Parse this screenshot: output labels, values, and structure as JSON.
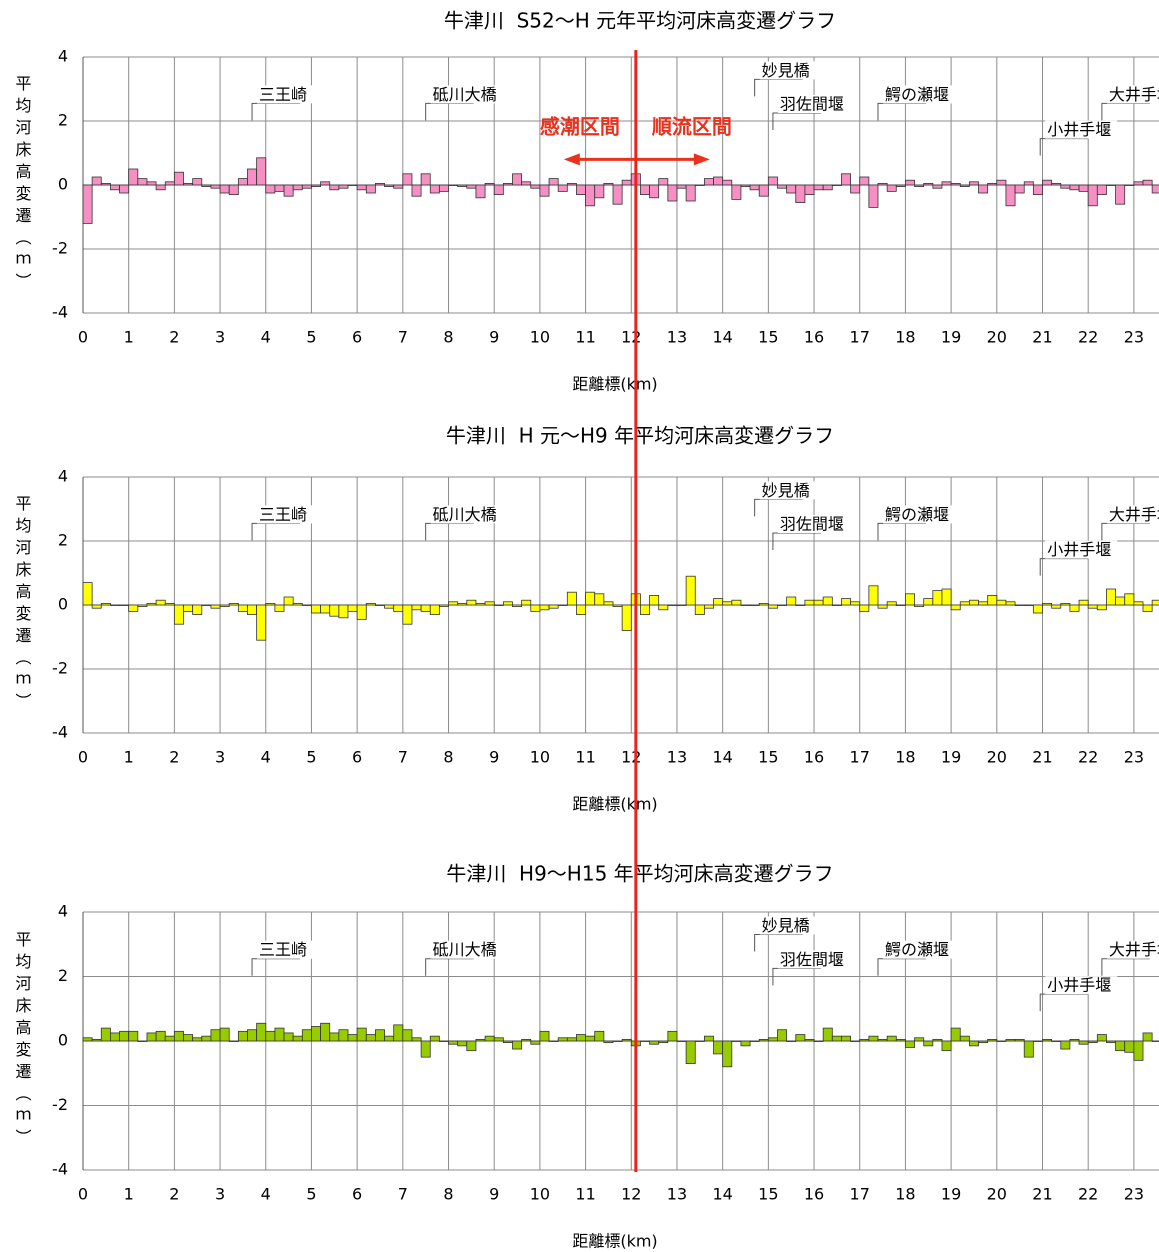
{
  "boundary_x": 12.1,
  "boundary_color": "#e8231a",
  "chart_data": [
    {
      "type": "bar",
      "title": "牛津川  S52～H 元年平均河床高変遷グラフ",
      "xlabel": "距離標(km)",
      "ylabel": "平均河床高変遷（ｍ）",
      "color": "#f58fc4",
      "xlim": [
        0,
        23.55
      ],
      "ylim": [
        -4,
        4
      ],
      "yticks": [
        4,
        2,
        0,
        -2,
        -4
      ],
      "xticks": [
        0,
        1,
        2,
        3,
        4,
        5,
        6,
        7,
        8,
        9,
        10,
        11,
        12,
        13,
        14,
        15,
        16,
        17,
        18,
        19,
        20,
        21,
        22,
        23
      ],
      "grid": true,
      "region_labels": [
        "感潮区間",
        "順流区間"
      ],
      "region_color": "#e8321e",
      "annotations": [
        {
          "text": "三王崎",
          "x": 3.7,
          "y": 2.8
        },
        {
          "text": "砥川大橋",
          "x": 7.5,
          "y": 2.8
        },
        {
          "text": "妙見橋",
          "x": 14.7,
          "y": 3.55
        },
        {
          "text": "羽佐間堰",
          "x": 15.1,
          "y": 2.5
        },
        {
          "text": "鰐の瀬堰",
          "x": 17.4,
          "y": 2.8
        },
        {
          "text": "小井手堰",
          "x": 20.95,
          "y": 1.7
        },
        {
          "text": "大井手堰",
          "x": 22.3,
          "y": 2.8
        }
      ],
      "x": [
        0,
        0.2,
        0.4,
        0.6,
        0.8,
        1,
        1.2,
        1.4,
        1.6,
        1.8,
        2,
        2.2,
        2.4,
        2.6,
        2.8,
        3,
        3.2,
        3.4,
        3.6,
        3.8,
        4,
        4.2,
        4.4,
        4.6,
        4.8,
        5,
        5.2,
        5.4,
        5.6,
        5.8,
        6,
        6.2,
        6.4,
        6.6,
        6.8,
        7,
        7.2,
        7.4,
        7.6,
        7.8,
        8,
        8.2,
        8.4,
        8.6,
        8.8,
        9,
        9.2,
        9.4,
        9.6,
        9.8,
        10,
        10.2,
        10.4,
        10.6,
        10.8,
        11,
        11.2,
        11.4,
        11.6,
        11.8,
        12,
        12.2,
        12.4,
        12.6,
        12.8,
        13,
        13.2,
        13.4,
        13.6,
        13.8,
        14,
        14.2,
        14.4,
        14.6,
        14.8,
        15,
        15.2,
        15.4,
        15.6,
        15.8,
        16,
        16.2,
        16.4,
        16.6,
        16.8,
        17,
        17.2,
        17.4,
        17.6,
        17.8,
        18,
        18.2,
        18.4,
        18.6,
        18.8,
        19,
        19.2,
        19.4,
        19.6,
        19.8,
        20,
        20.2,
        20.4,
        20.6,
        20.8,
        21,
        21.2,
        21.4,
        21.6,
        21.8,
        22,
        22.2,
        22.4,
        22.6,
        22.8,
        23,
        23.2,
        23.4
      ],
      "values": [
        -1.2,
        0.25,
        0.05,
        -0.15,
        -0.25,
        0.5,
        0.2,
        0.1,
        -0.15,
        0.1,
        0.4,
        0.05,
        0.2,
        -0.05,
        -0.1,
        -0.25,
        -0.3,
        0.2,
        0.5,
        0.85,
        -0.25,
        -0.2,
        -0.35,
        -0.15,
        -0.1,
        -0.05,
        0.1,
        -0.15,
        -0.1,
        0,
        -0.15,
        -0.25,
        0.05,
        -0.05,
        -0.1,
        0.35,
        -0.35,
        0.35,
        -0.25,
        -0.2,
        0,
        -0.05,
        -0.1,
        -0.4,
        0.05,
        -0.3,
        0.05,
        0.35,
        0.1,
        -0.1,
        -0.35,
        0.2,
        -0.2,
        0.05,
        -0.3,
        -0.65,
        -0.4,
        0.05,
        -0.6,
        0.15,
        0.35,
        -0.3,
        -0.4,
        0.2,
        -0.5,
        -0.1,
        -0.5,
        0,
        0.2,
        0.25,
        0.15,
        -0.45,
        -0.05,
        -0.15,
        -0.35,
        0.25,
        -0.1,
        -0.25,
        -0.55,
        -0.3,
        -0.15,
        -0.15,
        0,
        0.35,
        -0.25,
        0.25,
        -0.7,
        0.05,
        -0.2,
        -0.05,
        0.15,
        -0.05,
        0.05,
        -0.1,
        0.1,
        0.05,
        -0.05,
        0.1,
        -0.25,
        0.05,
        0.15,
        -0.65,
        -0.25,
        0.1,
        -0.3,
        0.15,
        0.05,
        -0.1,
        -0.15,
        -0.2,
        -0.65,
        -0.3,
        0,
        -0.6,
        0,
        0.1,
        0.15,
        -0.25
      ]
    },
    {
      "type": "bar",
      "title": "牛津川  H 元～H9 年平均河床高変遷グラフ",
      "xlabel": "距離標(km)",
      "ylabel": "平均河床高変遷（ｍ）",
      "color": "#ffff00",
      "xlim": [
        0,
        23.55
      ],
      "ylim": [
        -4,
        4
      ],
      "yticks": [
        4,
        2,
        0,
        -2,
        -4
      ],
      "xticks": [
        0,
        1,
        2,
        3,
        4,
        5,
        6,
        7,
        8,
        9,
        10,
        11,
        12,
        13,
        14,
        15,
        16,
        17,
        18,
        19,
        20,
        21,
        22,
        23
      ],
      "grid": true,
      "annotations": [
        {
          "text": "三王崎",
          "x": 3.7,
          "y": 2.8
        },
        {
          "text": "砥川大橋",
          "x": 7.5,
          "y": 2.8
        },
        {
          "text": "妙見橋",
          "x": 14.7,
          "y": 3.55
        },
        {
          "text": "羽佐間堰",
          "x": 15.1,
          "y": 2.5
        },
        {
          "text": "鰐の瀬堰",
          "x": 17.4,
          "y": 2.8
        },
        {
          "text": "小井手堰",
          "x": 20.95,
          "y": 1.7
        },
        {
          "text": "大井手堰",
          "x": 22.3,
          "y": 2.8
        }
      ],
      "x": [
        0,
        0.2,
        0.4,
        0.6,
        0.8,
        1,
        1.2,
        1.4,
        1.6,
        1.8,
        2,
        2.2,
        2.4,
        2.6,
        2.8,
        3,
        3.2,
        3.4,
        3.6,
        3.8,
        4,
        4.2,
        4.4,
        4.6,
        4.8,
        5,
        5.2,
        5.4,
        5.6,
        5.8,
        6,
        6.2,
        6.4,
        6.6,
        6.8,
        7,
        7.2,
        7.4,
        7.6,
        7.8,
        8,
        8.2,
        8.4,
        8.6,
        8.8,
        9,
        9.2,
        9.4,
        9.6,
        9.8,
        10,
        10.2,
        10.4,
        10.6,
        10.8,
        11,
        11.2,
        11.4,
        11.6,
        11.8,
        12,
        12.2,
        12.4,
        12.6,
        12.8,
        13,
        13.2,
        13.4,
        13.6,
        13.8,
        14,
        14.2,
        14.4,
        14.6,
        14.8,
        15,
        15.2,
        15.4,
        15.6,
        15.8,
        16,
        16.2,
        16.4,
        16.6,
        16.8,
        17,
        17.2,
        17.4,
        17.6,
        17.8,
        18,
        18.2,
        18.4,
        18.6,
        18.8,
        19,
        19.2,
        19.4,
        19.6,
        19.8,
        20,
        20.2,
        20.4,
        20.6,
        20.8,
        21,
        21.2,
        21.4,
        21.6,
        21.8,
        22,
        22.2,
        22.4,
        22.6,
        22.8,
        23,
        23.2,
        23.4
      ],
      "values": [
        0.7,
        -0.1,
        0.05,
        0,
        0,
        -0.2,
        -0.05,
        0.05,
        0.15,
        0.05,
        -0.6,
        -0.2,
        -0.3,
        0,
        -0.1,
        -0.05,
        0.05,
        -0.2,
        -0.3,
        -1.1,
        0.05,
        -0.2,
        0.25,
        0.05,
        0,
        -0.25,
        -0.25,
        -0.35,
        -0.4,
        -0.2,
        -0.45,
        0.05,
        0,
        -0.1,
        -0.2,
        -0.6,
        -0.15,
        -0.2,
        -0.3,
        -0.05,
        0.1,
        0.05,
        0.15,
        0.05,
        0.1,
        0,
        0.1,
        -0.05,
        0.15,
        -0.2,
        -0.15,
        -0.1,
        0,
        0.4,
        -0.3,
        0.4,
        0.35,
        0.1,
        -0.05,
        -0.8,
        0.35,
        -0.3,
        0.3,
        -0.15,
        0,
        0,
        0.9,
        -0.3,
        -0.1,
        0.2,
        0.1,
        0.15,
        0,
        0,
        0.05,
        -0.1,
        0,
        0.25,
        0,
        0.15,
        0.15,
        0.25,
        0,
        0.2,
        0.1,
        -0.2,
        0.6,
        -0.1,
        0.1,
        0,
        0.35,
        -0.05,
        0.2,
        0.45,
        0.5,
        -0.15,
        0.1,
        0.15,
        0.1,
        0.3,
        0.15,
        0.1,
        0,
        0,
        -0.25,
        0.05,
        -0.1,
        0.05,
        -0.2,
        0.15,
        -0.1,
        -0.15,
        0.5,
        0.25,
        0.35,
        0.1,
        -0.2,
        0.15
      ]
    },
    {
      "type": "bar",
      "title": "牛津川  H9～H15 年平均河床高変遷グラフ",
      "xlabel": "距離標(km)",
      "ylabel": "平均河床高変遷（ｍ）",
      "color": "#99cc00",
      "xlim": [
        0,
        23.55
      ],
      "ylim": [
        -4,
        4
      ],
      "yticks": [
        4,
        2,
        0,
        -2,
        -4
      ],
      "xticks": [
        0,
        1,
        2,
        3,
        4,
        5,
        6,
        7,
        8,
        9,
        10,
        11,
        12,
        13,
        14,
        15,
        16,
        17,
        18,
        19,
        20,
        21,
        22,
        23
      ],
      "grid": true,
      "annotations": [
        {
          "text": "三王崎",
          "x": 3.7,
          "y": 2.8
        },
        {
          "text": "砥川大橋",
          "x": 7.5,
          "y": 2.8
        },
        {
          "text": "妙見橋",
          "x": 14.7,
          "y": 3.55
        },
        {
          "text": "羽佐間堰",
          "x": 15.1,
          "y": 2.5
        },
        {
          "text": "鰐の瀬堰",
          "x": 17.4,
          "y": 2.8
        },
        {
          "text": "小井手堰",
          "x": 20.95,
          "y": 1.7
        },
        {
          "text": "大井手堰",
          "x": 22.3,
          "y": 2.8
        }
      ],
      "x": [
        0,
        0.2,
        0.4,
        0.6,
        0.8,
        1,
        1.2,
        1.4,
        1.6,
        1.8,
        2,
        2.2,
        2.4,
        2.6,
        2.8,
        3,
        3.2,
        3.4,
        3.6,
        3.8,
        4,
        4.2,
        4.4,
        4.6,
        4.8,
        5,
        5.2,
        5.4,
        5.6,
        5.8,
        6,
        6.2,
        6.4,
        6.6,
        6.8,
        7,
        7.2,
        7.4,
        7.6,
        7.8,
        8,
        8.2,
        8.4,
        8.6,
        8.8,
        9,
        9.2,
        9.4,
        9.6,
        9.8,
        10,
        10.2,
        10.4,
        10.6,
        10.8,
        11,
        11.2,
        11.4,
        11.6,
        11.8,
        12,
        12.2,
        12.4,
        12.6,
        12.8,
        13,
        13.2,
        13.4,
        13.6,
        13.8,
        14,
        14.2,
        14.4,
        14.6,
        14.8,
        15,
        15.2,
        15.4,
        15.6,
        15.8,
        16,
        16.2,
        16.4,
        16.6,
        16.8,
        17,
        17.2,
        17.4,
        17.6,
        17.8,
        18,
        18.2,
        18.4,
        18.6,
        18.8,
        19,
        19.2,
        19.4,
        19.6,
        19.8,
        20,
        20.2,
        20.4,
        20.6,
        20.8,
        21,
        21.2,
        21.4,
        21.6,
        21.8,
        22,
        22.2,
        22.4,
        22.6,
        22.8,
        23,
        23.2,
        23.4
      ],
      "values": [
        0.1,
        0.05,
        0.4,
        0.25,
        0.3,
        0.3,
        0,
        0.25,
        0.3,
        0.15,
        0.3,
        0.2,
        0.1,
        0.15,
        0.35,
        0.4,
        0,
        0.3,
        0.35,
        0.55,
        0.3,
        0.4,
        0.25,
        0.15,
        0.35,
        0.45,
        0.55,
        0.25,
        0.35,
        0.2,
        0.4,
        0.2,
        0.35,
        0.15,
        0.5,
        0.35,
        0.1,
        -0.5,
        0.15,
        0,
        -0.1,
        -0.15,
        -0.3,
        0.05,
        0.15,
        0.1,
        -0.05,
        -0.25,
        0.05,
        -0.1,
        0.3,
        0,
        0.1,
        0.1,
        0.2,
        0.15,
        0.3,
        -0.05,
        0,
        0.05,
        -0.15,
        0,
        -0.1,
        -0.05,
        0.3,
        0,
        -0.7,
        0,
        0.15,
        -0.4,
        -0.8,
        0,
        -0.15,
        0,
        0.05,
        0.1,
        0.35,
        0,
        0.2,
        0.05,
        0,
        0.4,
        0.15,
        0.15,
        0,
        0.05,
        0.15,
        0.05,
        0.15,
        0.05,
        -0.2,
        0.1,
        -0.15,
        0.05,
        -0.3,
        0.4,
        0.15,
        -0.15,
        -0.05,
        0.05,
        0,
        0.05,
        0.05,
        -0.5,
        0,
        0.05,
        0,
        -0.25,
        0.05,
        -0.1,
        -0.05,
        0.2,
        -0.05,
        -0.3,
        -0.35,
        -0.6,
        0.25,
        0
      ]
    }
  ]
}
